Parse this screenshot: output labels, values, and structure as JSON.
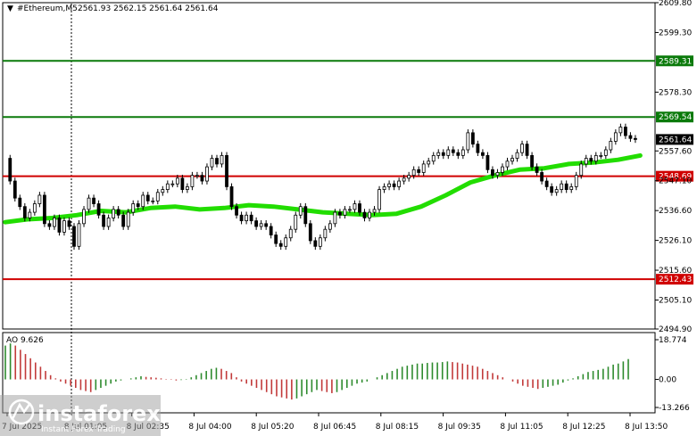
{
  "header": {
    "symbol": "#Ethereum,M5",
    "ohlc": "2561.93 2562.15 2561.64 2561.64"
  },
  "ao_header": "AO 9.626",
  "watermark": {
    "brand": "instaforex",
    "tagline": "Instant Forex Trading"
  },
  "colors": {
    "background": "#ffffff",
    "candle": "#000000",
    "moving_average": "#22dd00",
    "support_resistance_green": "#0a7a0a",
    "support_resistance_red": "#d00000",
    "ao_up": "#2e8b2e",
    "ao_down": "#c23a3a",
    "current_price_tag": "#000000"
  },
  "chart_data": [
    {
      "type": "candlestick",
      "title": "#Ethereum,M5",
      "y_ticks": [
        "2609.80",
        "2599.30",
        "2578.30",
        "2557.60",
        "2547.10",
        "2536.60",
        "2526.10",
        "2515.60",
        "2505.10",
        "2494.90"
      ],
      "ylim": [
        2494.9,
        2609.8
      ],
      "x_ticks": [
        "7 Jul 2025",
        "8 Jul 01:05",
        "8 Jul 02:35",
        "8 Jul 04:00",
        "8 Jul 05:20",
        "8 Jul 06:45",
        "8 Jul 08:15",
        "8 Jul 09:35",
        "8 Jul 11:05",
        "8 Jul 12:25",
        "8 Jul 13:50"
      ],
      "horizontal_levels": [
        {
          "value": 2589.31,
          "label": "2589.31",
          "color": "green"
        },
        {
          "value": 2569.54,
          "label": "2569.54",
          "color": "green"
        },
        {
          "value": 2548.69,
          "label": "2548.69",
          "color": "red"
        },
        {
          "value": 2512.43,
          "label": "2512.43",
          "color": "red"
        }
      ],
      "current_price": {
        "value": 2561.64,
        "label": "2561.64"
      },
      "moving_average": [
        [
          1,
          2532.5
        ],
        [
          10,
          2533.5
        ],
        [
          20,
          2534.0
        ],
        [
          30,
          2535.0
        ],
        [
          40,
          2536.5
        ],
        [
          50,
          2536.0
        ],
        [
          60,
          2537.5
        ],
        [
          70,
          2538.0
        ],
        [
          80,
          2537.0
        ],
        [
          90,
          2537.5
        ],
        [
          100,
          2538.5
        ],
        [
          110,
          2538.0
        ],
        [
          120,
          2537.0
        ],
        [
          130,
          2536.0
        ],
        [
          140,
          2535.5
        ],
        [
          150,
          2535.0
        ],
        [
          160,
          2535.5
        ],
        [
          170,
          2538.0
        ],
        [
          180,
          2542.0
        ],
        [
          190,
          2546.5
        ],
        [
          200,
          2549.0
        ],
        [
          210,
          2551.0
        ],
        [
          220,
          2551.5
        ],
        [
          230,
          2553.0
        ],
        [
          240,
          2553.5
        ],
        [
          250,
          2554.5
        ],
        [
          259,
          2556.0
        ]
      ],
      "close_series": [
        [
          1,
          2555
        ],
        [
          3,
          2547
        ],
        [
          5,
          2541
        ],
        [
          7,
          2538
        ],
        [
          9,
          2534
        ],
        [
          11,
          2536
        ],
        [
          13,
          2539
        ],
        [
          15,
          2542
        ],
        [
          17,
          2532
        ],
        [
          19,
          2531
        ],
        [
          21,
          2534
        ],
        [
          23,
          2529
        ],
        [
          25,
          2533
        ],
        [
          27,
          2531
        ],
        [
          29,
          2524
        ],
        [
          31,
          2532
        ],
        [
          33,
          2537
        ],
        [
          35,
          2541
        ],
        [
          37,
          2539
        ],
        [
          39,
          2535
        ],
        [
          41,
          2531
        ],
        [
          43,
          2534
        ],
        [
          45,
          2537
        ],
        [
          47,
          2535
        ],
        [
          49,
          2531
        ],
        [
          51,
          2536
        ],
        [
          53,
          2539
        ],
        [
          55,
          2538
        ],
        [
          57,
          2542
        ],
        [
          59,
          2540
        ],
        [
          61,
          2540
        ],
        [
          63,
          2543
        ],
        [
          65,
          2544
        ],
        [
          67,
          2546
        ],
        [
          69,
          2546
        ],
        [
          71,
          2548
        ],
        [
          73,
          2544
        ],
        [
          75,
          2545
        ],
        [
          77,
          2549
        ],
        [
          79,
          2549
        ],
        [
          81,
          2547
        ],
        [
          83,
          2552
        ],
        [
          85,
          2555
        ],
        [
          87,
          2553
        ],
        [
          89,
          2556
        ],
        [
          91,
          2545
        ],
        [
          93,
          2538
        ],
        [
          95,
          2535
        ],
        [
          97,
          2533
        ],
        [
          99,
          2535
        ],
        [
          101,
          2533
        ],
        [
          103,
          2531
        ],
        [
          105,
          2532
        ],
        [
          107,
          2531
        ],
        [
          109,
          2528
        ],
        [
          111,
          2525
        ],
        [
          113,
          2524
        ],
        [
          115,
          2527
        ],
        [
          117,
          2530
        ],
        [
          119,
          2535
        ],
        [
          121,
          2538
        ],
        [
          123,
          2532
        ],
        [
          125,
          2526
        ],
        [
          127,
          2524
        ],
        [
          129,
          2527
        ],
        [
          131,
          2530
        ],
        [
          133,
          2532
        ],
        [
          135,
          2536
        ],
        [
          137,
          2535
        ],
        [
          139,
          2537
        ],
        [
          141,
          2537
        ],
        [
          143,
          2539
        ],
        [
          145,
          2536
        ],
        [
          147,
          2534
        ],
        [
          149,
          2536
        ],
        [
          151,
          2537
        ],
        [
          153,
          2544
        ],
        [
          155,
          2545
        ],
        [
          157,
          2546
        ],
        [
          159,
          2545
        ],
        [
          161,
          2547
        ],
        [
          163,
          2548
        ],
        [
          165,
          2549
        ],
        [
          167,
          2551
        ],
        [
          169,
          2550
        ],
        [
          171,
          2553
        ],
        [
          173,
          2554
        ],
        [
          175,
          2556
        ],
        [
          177,
          2557
        ],
        [
          179,
          2556
        ],
        [
          181,
          2558
        ],
        [
          183,
          2557
        ],
        [
          185,
          2556
        ],
        [
          187,
          2558
        ],
        [
          189,
          2564
        ],
        [
          191,
          2560
        ],
        [
          193,
          2557
        ],
        [
          195,
          2556
        ],
        [
          197,
          2551
        ],
        [
          199,
          2549
        ],
        [
          201,
          2550
        ],
        [
          203,
          2552
        ],
        [
          205,
          2554
        ],
        [
          207,
          2555
        ],
        [
          209,
          2557
        ],
        [
          211,
          2560
        ],
        [
          213,
          2556
        ],
        [
          215,
          2552
        ],
        [
          217,
          2550
        ],
        [
          219,
          2547
        ],
        [
          221,
          2545
        ],
        [
          223,
          2543
        ],
        [
          225,
          2544
        ],
        [
          227,
          2546
        ],
        [
          229,
          2544
        ],
        [
          231,
          2545
        ],
        [
          233,
          2549
        ],
        [
          235,
          2553
        ],
        [
          237,
          2555
        ],
        [
          239,
          2554
        ],
        [
          241,
          2556
        ],
        [
          243,
          2556
        ],
        [
          245,
          2558
        ],
        [
          247,
          2561
        ],
        [
          249,
          2564
        ],
        [
          251,
          2566
        ],
        [
          253,
          2563
        ],
        [
          255,
          2562
        ],
        [
          257,
          2561.64
        ]
      ],
      "xlim": [
        0,
        265
      ]
    },
    {
      "type": "bar",
      "title": "AO 9.626",
      "y_ticks": [
        "18.774",
        "0.00",
        "-13.266"
      ],
      "ylim": [
        -13.266,
        18.774
      ],
      "values": [
        16,
        17,
        16,
        14,
        12,
        10,
        8,
        6,
        4,
        2,
        0.5,
        -1,
        -2,
        -3,
        -4,
        -5,
        -5.5,
        -6,
        -5,
        -4,
        -3,
        -2,
        -1,
        -0.5,
        0,
        0.5,
        1,
        1.5,
        1.2,
        1,
        0.8,
        0.5,
        0.2,
        -0.2,
        -0.5,
        -0.3,
        0.2,
        1,
        2,
        3,
        4,
        5,
        5.5,
        5,
        4,
        3,
        1,
        -1,
        -2,
        -3,
        -4,
        -5,
        -6,
        -7,
        -8,
        -8.5,
        -9,
        -9.5,
        -9,
        -8,
        -7,
        -6,
        -5,
        -5.5,
        -6,
        -6.5,
        -6,
        -5,
        -4,
        -3,
        -2,
        -1.5,
        -1,
        0,
        1,
        2,
        3,
        4,
        5,
        6,
        6.5,
        7,
        7.5,
        7.5,
        7.8,
        8,
        8,
        8.2,
        8.5,
        8.2,
        8,
        7.5,
        7,
        6.5,
        6,
        5,
        4,
        3,
        2,
        1,
        0,
        -1,
        -2,
        -3,
        -3.5,
        -4,
        -4.5,
        -4,
        -3.5,
        -3,
        -2.5,
        -1.5,
        -0.5,
        0.5,
        1.5,
        2.5,
        3.5,
        4,
        4.5,
        5,
        6,
        7,
        7.5,
        8.5,
        9.626
      ]
    }
  ]
}
